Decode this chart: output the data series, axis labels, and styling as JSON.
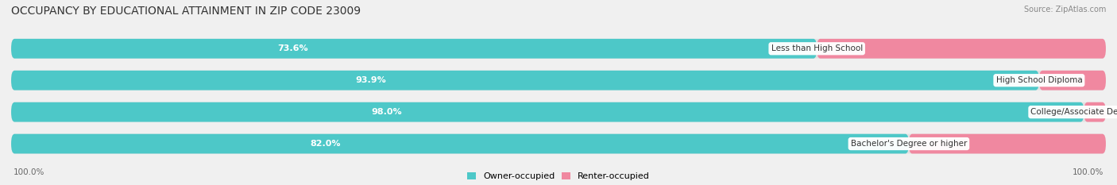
{
  "title": "OCCUPANCY BY EDUCATIONAL ATTAINMENT IN ZIP CODE 23009",
  "source": "Source: ZipAtlas.com",
  "categories": [
    "Less than High School",
    "High School Diploma",
    "College/Associate Degree",
    "Bachelor's Degree or higher"
  ],
  "owner_values": [
    73.6,
    93.9,
    98.0,
    82.0
  ],
  "renter_values": [
    26.4,
    6.1,
    2.0,
    18.0
  ],
  "owner_color": "#4DC8C8",
  "renter_color": "#F088A0",
  "bg_color": "#f0f0f0",
  "bar_bg_color": "#e2e2e2",
  "title_fontsize": 10,
  "label_fontsize": 8,
  "value_fontsize": 8,
  "source_fontsize": 7,
  "axis_label_left": "100.0%",
  "axis_label_right": "100.0%"
}
